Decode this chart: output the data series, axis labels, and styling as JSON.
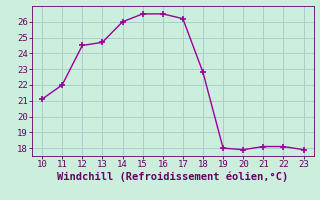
{
  "x": [
    10,
    11,
    12,
    13,
    14,
    15,
    16,
    17,
    18,
    19,
    20,
    21,
    22,
    23
  ],
  "y": [
    21.1,
    22.0,
    24.5,
    24.7,
    26.0,
    26.5,
    26.5,
    26.2,
    22.8,
    18.0,
    17.9,
    18.1,
    18.1,
    17.9
  ],
  "line_color": "#990099",
  "marker": "+",
  "marker_size": 4,
  "line_width": 1.0,
  "background_color": "#cceedd",
  "grid_color": "#aacccc",
  "xlabel": "Windchill (Refroidissement éolien,°C)",
  "xlabel_color": "#660066",
  "xlabel_fontsize": 7.5,
  "tick_color": "#660066",
  "tick_fontsize": 6.5,
  "xlim": [
    9.5,
    23.5
  ],
  "ylim": [
    17.5,
    27.0
  ],
  "yticks": [
    18,
    19,
    20,
    21,
    22,
    23,
    24,
    25,
    26
  ],
  "xticks": [
    10,
    11,
    12,
    13,
    14,
    15,
    16,
    17,
    18,
    19,
    20,
    21,
    22,
    23
  ]
}
